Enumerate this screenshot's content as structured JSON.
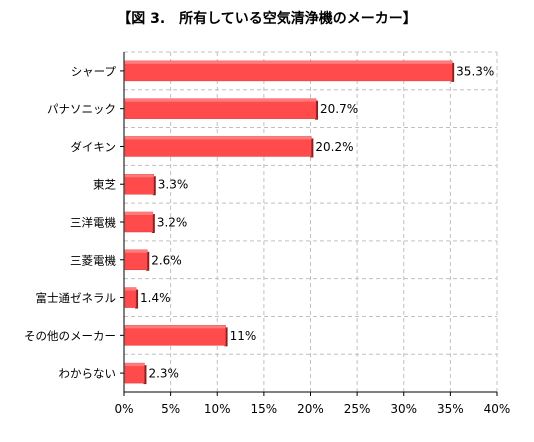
{
  "chart_data": {
    "type": "bar",
    "orientation": "horizontal",
    "title": "【図 3.　所有している空気清浄機のメーカー】",
    "categories": [
      "シャープ",
      "パナソニック",
      "ダイキン",
      "東芝",
      "三洋電機",
      "三菱電機",
      "富士通ゼネラル",
      "その他のメーカー",
      "わからない"
    ],
    "values": [
      35.3,
      20.7,
      20.2,
      3.3,
      3.2,
      2.6,
      1.4,
      11,
      2.3
    ],
    "value_labels": [
      "35.3%",
      "20.7%",
      "20.2%",
      "3.3%",
      "3.2%",
      "2.6%",
      "1.4%",
      "11%",
      "2.3%"
    ],
    "xlim": [
      0,
      40
    ],
    "x_ticks": [
      0,
      5,
      10,
      15,
      20,
      25,
      30,
      35,
      40
    ],
    "x_tick_labels": [
      "0%",
      "5%",
      "10%",
      "15%",
      "20%",
      "25%",
      "30%",
      "35%",
      "40%"
    ],
    "xlabel": "",
    "ylabel": "",
    "grid": true,
    "bar_color": "#ff4b4b",
    "bar_edge_color": "#8b1f1f",
    "grid_color": "#c0c0c0"
  }
}
